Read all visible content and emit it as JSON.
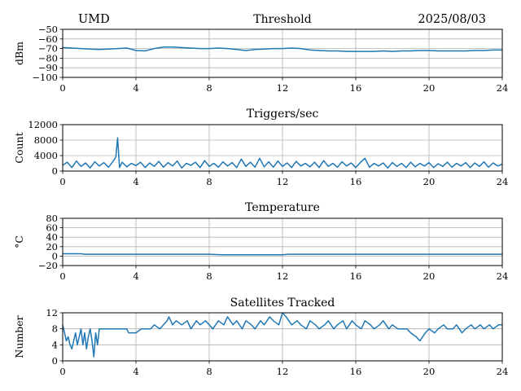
{
  "header": {
    "site": "UMD",
    "date": "2025/08/03"
  },
  "chart_data": [
    {
      "type": "line",
      "title": "Threshold",
      "xlabel": "",
      "ylabel": "dBm",
      "xlim": [
        0,
        24
      ],
      "ylim": [
        -100,
        -50
      ],
      "x_ticks": [
        0,
        4,
        8,
        12,
        16,
        20,
        24
      ],
      "y_ticks": [
        -100,
        -90,
        -80,
        -70,
        -60,
        -50
      ],
      "y_tick_labels": [
        "−100",
        "−90",
        "−80",
        "−70",
        "−60",
        "−50"
      ],
      "grid": true,
      "series": [
        {
          "color": "#1f77b4",
          "x": [
            0,
            0.5,
            1,
            1.5,
            2,
            2.5,
            3,
            3.5,
            4,
            4.5,
            5,
            5.5,
            6,
            6.5,
            7,
            7.5,
            8,
            8.5,
            9,
            9.5,
            10,
            10.5,
            11,
            11.5,
            12,
            12.5,
            13,
            13.5,
            14,
            14.5,
            15,
            15.5,
            16,
            16.5,
            17,
            17.5,
            18,
            18.5,
            19,
            19.5,
            20,
            20.5,
            21,
            21.5,
            22,
            22.5,
            23,
            23.5,
            24
          ],
          "y": [
            -69,
            -69.5,
            -70,
            -70.5,
            -71,
            -70.5,
            -70,
            -69.5,
            -72,
            -72.5,
            -70,
            -68.5,
            -68.5,
            -69,
            -69.5,
            -70,
            -70,
            -69.5,
            -70,
            -71,
            -72,
            -71,
            -70.5,
            -70,
            -70,
            -69.5,
            -70,
            -71.5,
            -72,
            -72.5,
            -72.5,
            -73,
            -73,
            -73,
            -73,
            -72.5,
            -73,
            -72.5,
            -72.5,
            -72,
            -72,
            -72.5,
            -72.5,
            -72.5,
            -72.5,
            -72,
            -72,
            -71.5,
            -71.5
          ]
        }
      ]
    },
    {
      "type": "line",
      "title": "Triggers/sec",
      "xlabel": "",
      "ylabel": "Count",
      "xlim": [
        0,
        24
      ],
      "ylim": [
        0,
        12000
      ],
      "x_ticks": [
        0,
        4,
        8,
        12,
        16,
        20,
        24
      ],
      "y_ticks": [
        0,
        4000,
        8000,
        12000
      ],
      "grid": true,
      "series": [
        {
          "color": "#1f77b4",
          "x": [
            0,
            0.25,
            0.5,
            0.75,
            1,
            1.25,
            1.5,
            1.75,
            2,
            2.25,
            2.5,
            2.75,
            2.9,
            3.0,
            3.1,
            3.25,
            3.5,
            3.75,
            4,
            4.25,
            4.5,
            4.75,
            5,
            5.25,
            5.5,
            5.75,
            6,
            6.25,
            6.5,
            6.75,
            7,
            7.25,
            7.5,
            7.75,
            8,
            8.25,
            8.5,
            8.75,
            9,
            9.25,
            9.5,
            9.75,
            10,
            10.25,
            10.5,
            10.75,
            11,
            11.25,
            11.5,
            11.75,
            12,
            12.25,
            12.5,
            12.75,
            13,
            13.25,
            13.5,
            13.75,
            14,
            14.25,
            14.5,
            14.75,
            15,
            15.25,
            15.5,
            15.75,
            16,
            16.25,
            16.5,
            16.75,
            17,
            17.25,
            17.5,
            17.75,
            18,
            18.25,
            18.5,
            18.75,
            19,
            19.25,
            19.5,
            19.75,
            20,
            20.25,
            20.5,
            20.75,
            21,
            21.25,
            21.5,
            21.75,
            22,
            22.25,
            22.5,
            22.75,
            23,
            23.25,
            23.5,
            23.75,
            24
          ],
          "y": [
            1500,
            2300,
            900,
            2600,
            1200,
            2100,
            800,
            2400,
            1300,
            2200,
            1000,
            2500,
            3600,
            8600,
            900,
            2300,
            1100,
            2000,
            1400,
            2300,
            900,
            2100,
            1200,
            2500,
            1000,
            2200,
            1300,
            2600,
            800,
            2000,
            1500,
            2300,
            900,
            2700,
            1200,
            2000,
            1000,
            2400,
            1300,
            2200,
            900,
            3100,
            1200,
            2300,
            1000,
            3300,
            1100,
            2400,
            1000,
            2600,
            1200,
            2100,
            900,
            2500,
            1300,
            2000,
            1100,
            2300,
            900,
            2700,
            1200,
            2000,
            1000,
            2400,
            1300,
            2100,
            900,
            2200,
            3300,
            1000,
            2000,
            1300,
            2100,
            800,
            2200,
            1200,
            2000,
            900,
            2300,
            1100,
            2000,
            1300,
            2200,
            900,
            1900,
            1200,
            2300,
            1000,
            2000,
            1300,
            2200,
            900,
            2100,
            1200,
            2400,
            1000,
            2100,
            1300,
            1800
          ]
        }
      ]
    },
    {
      "type": "line",
      "title": "Temperature",
      "xlabel": "",
      "ylabel": "°C",
      "xlim": [
        0,
        24
      ],
      "ylim": [
        -20,
        80
      ],
      "x_ticks": [
        0,
        4,
        8,
        12,
        16,
        20,
        24
      ],
      "y_ticks": [
        -20,
        0,
        20,
        40,
        60,
        80
      ],
      "y_tick_labels": [
        "−20",
        "0",
        "20",
        "40",
        "60",
        "80"
      ],
      "grid": true,
      "series": [
        {
          "color": "#1f77b4",
          "x": [
            0,
            1,
            1.2,
            2,
            3,
            4,
            5,
            6,
            7,
            8,
            8.7,
            9,
            10,
            11,
            12,
            12.3,
            13,
            14,
            15,
            16,
            17,
            18,
            19,
            20,
            21,
            22,
            23,
            24
          ],
          "y": [
            5,
            5,
            4,
            4,
            4,
            4,
            4,
            4,
            4,
            4,
            3,
            3,
            3,
            3,
            3,
            4,
            4,
            4,
            4,
            4,
            4,
            4,
            4,
            4,
            4,
            4,
            4,
            4
          ]
        }
      ]
    },
    {
      "type": "line",
      "title": "Satellites Tracked",
      "xlabel": "",
      "ylabel": "Number",
      "xlim": [
        0,
        24
      ],
      "ylim": [
        0,
        12
      ],
      "x_ticks": [
        0,
        4,
        8,
        12,
        16,
        20,
        24
      ],
      "y_ticks": [
        0,
        4,
        8,
        12
      ],
      "grid": true,
      "series": [
        {
          "color": "#1f77b4",
          "x": [
            0,
            0.1,
            0.2,
            0.3,
            0.4,
            0.5,
            0.6,
            0.7,
            0.8,
            0.9,
            1.0,
            1.1,
            1.2,
            1.3,
            1.4,
            1.5,
            1.6,
            1.7,
            1.8,
            1.9,
            2.0,
            2.2,
            2.5,
            3.0,
            3.5,
            3.6,
            3.8,
            4.0,
            4.3,
            4.5,
            4.8,
            5.0,
            5.3,
            5.5,
            5.7,
            5.8,
            6.0,
            6.2,
            6.5,
            6.8,
            7.0,
            7.3,
            7.5,
            7.8,
            8.0,
            8.2,
            8.5,
            8.8,
            9.0,
            9.3,
            9.5,
            9.8,
            10.0,
            10.3,
            10.5,
            10.8,
            11.0,
            11.3,
            11.5,
            11.8,
            12.0,
            12.2,
            12.5,
            12.8,
            13.0,
            13.3,
            13.5,
            13.8,
            14.0,
            14.3,
            14.5,
            14.8,
            15.0,
            15.3,
            15.5,
            15.8,
            16.0,
            16.3,
            16.5,
            16.8,
            17.0,
            17.3,
            17.5,
            17.8,
            18.0,
            18.3,
            18.5,
            18.8,
            19.0,
            19.3,
            19.5,
            19.8,
            20.0,
            20.3,
            20.5,
            20.8,
            21.0,
            21.3,
            21.5,
            21.8,
            22.0,
            22.3,
            22.5,
            22.8,
            23.0,
            23.3,
            23.5,
            23.8,
            24.0
          ],
          "y": [
            9,
            7,
            5,
            6,
            4,
            3,
            5,
            7,
            4,
            6,
            8,
            4,
            7,
            3,
            6,
            8,
            5,
            1,
            7,
            4,
            8,
            8,
            8,
            8,
            8,
            7,
            7,
            7,
            8,
            8,
            8,
            9,
            8,
            9,
            10,
            11,
            9,
            10,
            9,
            10,
            8,
            10,
            9,
            10,
            9,
            8,
            10,
            9,
            11,
            9,
            10,
            8,
            10,
            9,
            8,
            10,
            9,
            11,
            10,
            9,
            12,
            11,
            9,
            10,
            9,
            8,
            10,
            9,
            8,
            9,
            10,
            8,
            9,
            10,
            8,
            10,
            9,
            8,
            10,
            9,
            8,
            9,
            10,
            8,
            9,
            8,
            8,
            8,
            7,
            6,
            5,
            7,
            8,
            7,
            8,
            9,
            8,
            8,
            9,
            7,
            8,
            9,
            8,
            9,
            8,
            9,
            8,
            9,
            9
          ]
        }
      ]
    }
  ]
}
